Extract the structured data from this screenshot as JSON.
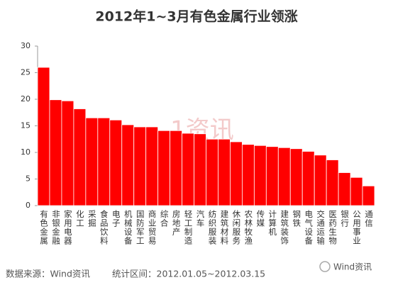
{
  "chart_data": {
    "type": "bar",
    "title": "2012年1~3月有色金属行业领涨",
    "categories": [
      "有色金属",
      "非银金融",
      "家用电器",
      "化工",
      "采掘",
      "食品饮料",
      "电子",
      "机械设备",
      "国防军工",
      "商业贸易",
      "综合",
      "房地产",
      "轻工制造",
      "汽车",
      "纺织服装",
      "建筑材料",
      "休闲服务",
      "农林牧渔",
      "传媒",
      "计算机",
      "建筑装饰",
      "钢铁",
      "电气设备",
      "交通运输",
      "医药生物",
      "银行",
      "公用事业",
      "通信"
    ],
    "values": [
      26.0,
      19.9,
      19.7,
      18.2,
      16.5,
      16.5,
      16.1,
      15.2,
      14.8,
      14.8,
      14.1,
      14.1,
      13.6,
      13.5,
      12.5,
      12.5,
      12.0,
      11.5,
      11.3,
      11.1,
      10.9,
      10.7,
      10.2,
      9.5,
      8.6,
      6.2,
      5.3,
      3.7
    ],
    "color": "#ff0000",
    "ylim": [
      0,
      30
    ],
    "yticks": [
      0,
      5,
      10,
      15,
      20,
      25,
      30
    ],
    "grid": false,
    "watermark": "1资讯",
    "source": "数据来源：Wind资讯",
    "period": "统计区间：2012.01.05~2012.03.15",
    "brand": "Wind资讯"
  }
}
